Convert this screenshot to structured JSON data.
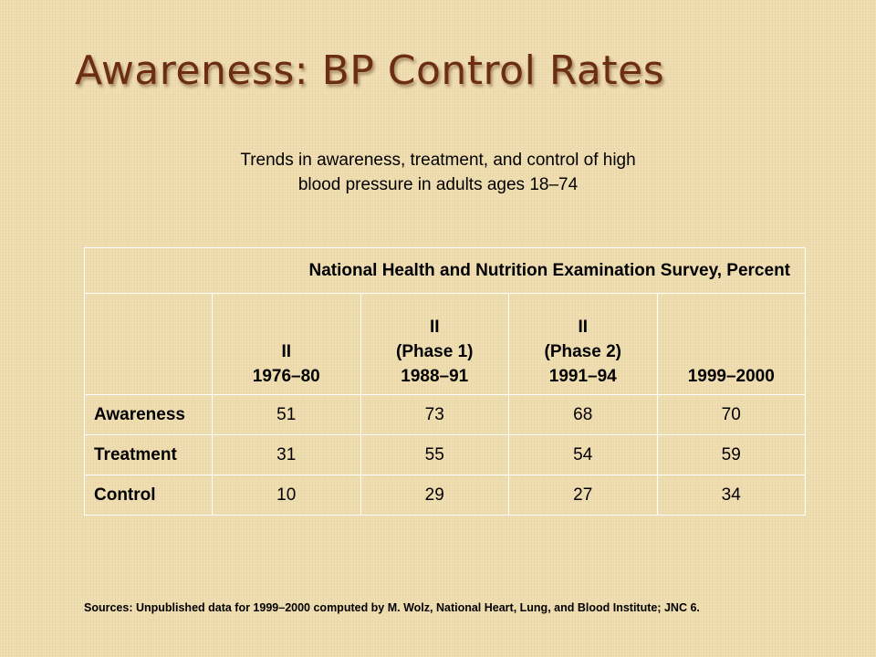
{
  "slide": {
    "title": "Awareness: BP Control Rates",
    "subtitle_line1": "Trends in awareness, treatment, and control of high",
    "subtitle_line2": "blood pressure in adults ages 18–74"
  },
  "table": {
    "survey_header": "National Health and Nutrition Examination Survey, Percent",
    "periods": [
      {
        "line1": "",
        "line2": "II",
        "line3": "1976–80"
      },
      {
        "line1": "II",
        "line2": "(Phase 1)",
        "line3": "1988–91"
      },
      {
        "line1": "II",
        "line2": "(Phase 2)",
        "line3": "1991–94"
      },
      {
        "line1": "",
        "line2": "",
        "line3": "1999–2000"
      }
    ],
    "rows": [
      {
        "label": "Awareness",
        "values": [
          "51",
          "73",
          "68",
          "70"
        ]
      },
      {
        "label": "Treatment",
        "values": [
          "31",
          "55",
          "54",
          "59"
        ]
      },
      {
        "label": "Control",
        "values": [
          "10",
          "29",
          "27",
          "34"
        ]
      }
    ]
  },
  "footer": {
    "sources": "Sources:  Unpublished data for 1999–2000 computed by M. Wolz, National Heart, Lung, and Blood Institute; JNC 6."
  },
  "colors": {
    "background": "#efdcae",
    "title": "#6b2d14",
    "table_border": "#ffffff"
  }
}
